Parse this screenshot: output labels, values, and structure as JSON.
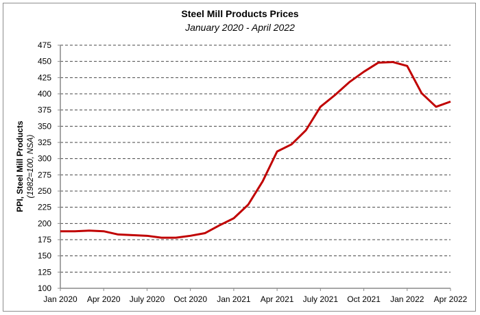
{
  "chart_data": {
    "type": "line",
    "title": "Steel Mill Products Prices",
    "subtitle": "January 2020 - April 2022",
    "ylabel": "PPI, Steel Mill Products",
    "ylabel_sub": "(1982=100, NSA)",
    "xlabel": "",
    "ylim": [
      100,
      475
    ],
    "yticks": [
      100,
      125,
      150,
      175,
      200,
      225,
      250,
      275,
      300,
      325,
      350,
      375,
      400,
      425,
      450,
      475
    ],
    "xtick_labels": [
      "Jan 2020",
      "Apr 2020",
      "July 2020",
      "Oct 2020",
      "Jan 2021",
      "Apr 2021",
      "July 2021",
      "Oct 2021",
      "Jan 2022",
      "Apr 2022"
    ],
    "grid": "horizontal dashed",
    "color": "#c00000",
    "series": [
      {
        "name": "PPI, Steel Mill Products",
        "x": [
          "2020-01",
          "2020-02",
          "2020-03",
          "2020-04",
          "2020-05",
          "2020-06",
          "2020-07",
          "2020-08",
          "2020-09",
          "2020-10",
          "2020-11",
          "2020-12",
          "2021-01",
          "2021-02",
          "2021-03",
          "2021-04",
          "2021-05",
          "2021-06",
          "2021-07",
          "2021-08",
          "2021-09",
          "2021-10",
          "2021-11",
          "2021-12",
          "2022-01",
          "2022-02",
          "2022-03",
          "2022-04"
        ],
        "values": [
          188,
          188,
          189,
          188,
          183,
          182,
          181,
          178,
          178,
          181,
          185,
          197,
          208,
          229,
          265,
          311,
          322,
          344,
          380,
          398,
          418,
          434,
          448,
          449,
          443,
          401,
          380,
          388
        ]
      }
    ]
  }
}
